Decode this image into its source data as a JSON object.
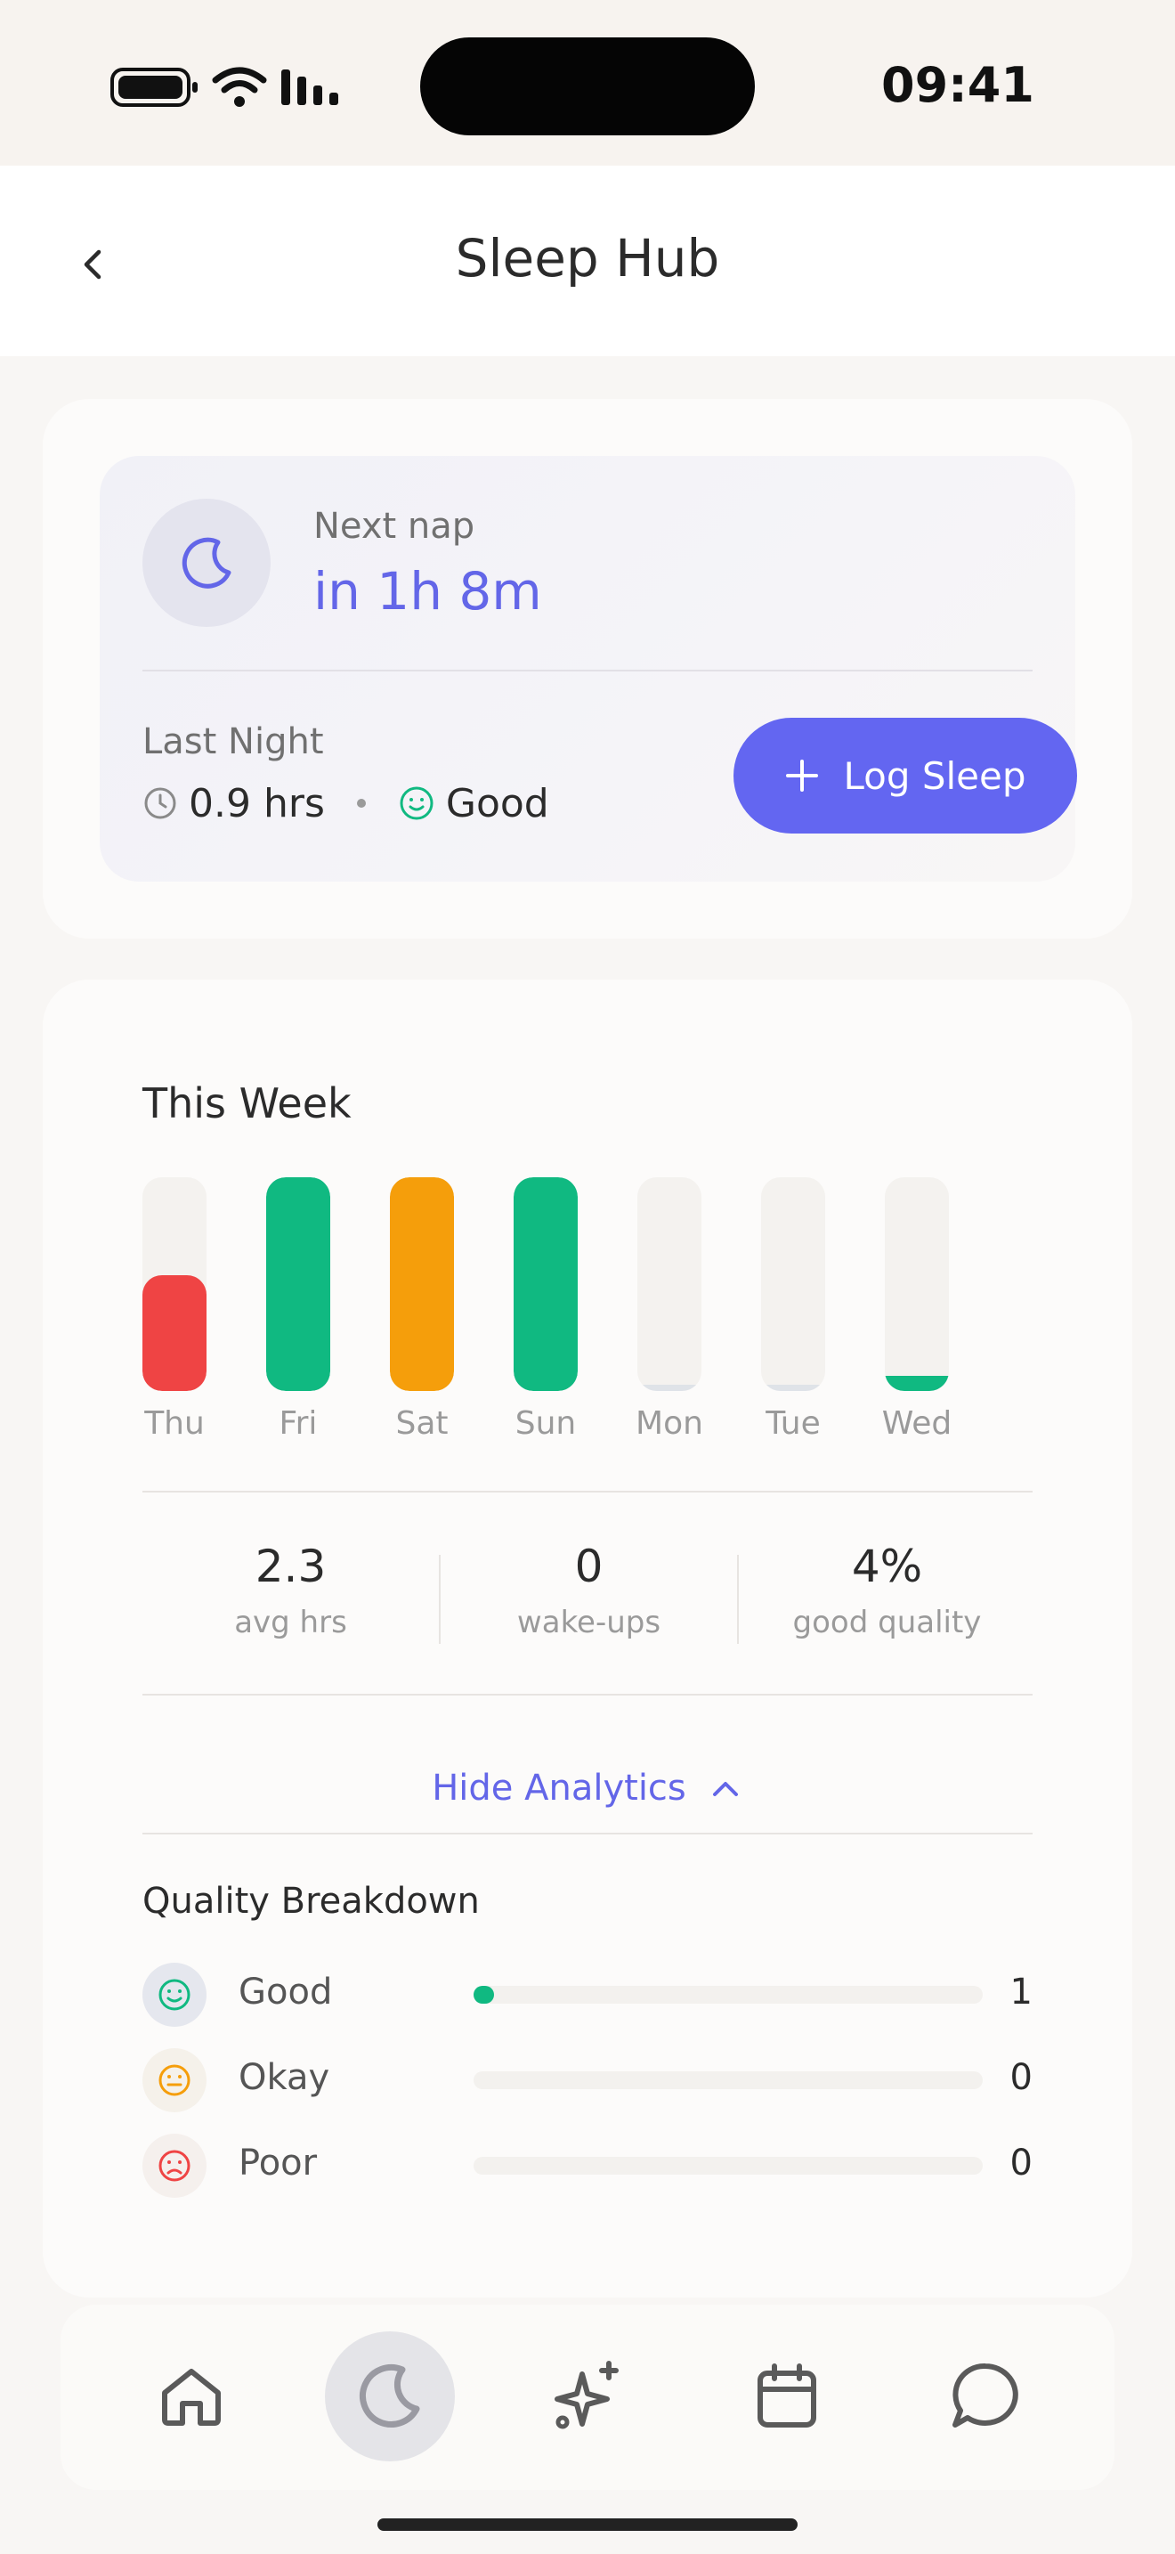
{
  "status_bar": {
    "time": "09:41"
  },
  "header": {
    "title": "Sleep Hub"
  },
  "next_nap": {
    "label": "Next nap",
    "value": "in 1h 8m"
  },
  "last_night": {
    "label": "Last Night",
    "hours": "0.9 hrs",
    "quality": "Good",
    "log_button_label": "Log Sleep"
  },
  "week": {
    "title": "This Week",
    "days": [
      {
        "label": "Thu",
        "fraction": 0.54,
        "color": "#ef4444"
      },
      {
        "label": "Fri",
        "fraction": 1.0,
        "color": "#10b981"
      },
      {
        "label": "Sat",
        "fraction": 1.0,
        "color": "#f59e0b"
      },
      {
        "label": "Sun",
        "fraction": 1.0,
        "color": "#10b981"
      },
      {
        "label": "Mon",
        "fraction": 0.03,
        "color": "#dfe3e8"
      },
      {
        "label": "Tue",
        "fraction": 0.03,
        "color": "#dfe3e8"
      },
      {
        "label": "Wed",
        "fraction": 0.07,
        "color": "#10b981"
      }
    ],
    "stats": [
      {
        "value": "2.3",
        "label": "avg hrs"
      },
      {
        "value": "0",
        "label": "wake-ups"
      },
      {
        "value": "4%",
        "label": "good quality"
      }
    ],
    "toggle_label": "Hide Analytics"
  },
  "quality_breakdown": {
    "title": "Quality Breakdown",
    "rows": [
      {
        "name": "Good",
        "count": "1",
        "fraction": 0.04,
        "color": "#10b981",
        "bg": "#e5e7ee",
        "icon": "smile-icon"
      },
      {
        "name": "Okay",
        "count": "0",
        "fraction": 0,
        "color": "#f59e0b",
        "bg": "#f5f1ea",
        "icon": "neutral-face-icon"
      },
      {
        "name": "Poor",
        "count": "0",
        "fraction": 0,
        "color": "#ef4444",
        "bg": "#f5f0ed",
        "icon": "sad-face-icon"
      }
    ]
  },
  "tab_bar": {
    "tabs": [
      {
        "name": "home",
        "icon": "home-icon",
        "active": false
      },
      {
        "name": "sleep",
        "icon": "moon-icon",
        "active": true
      },
      {
        "name": "ai",
        "icon": "sparkles-icon",
        "active": false
      },
      {
        "name": "calendar",
        "icon": "calendar-icon",
        "active": false
      },
      {
        "name": "chat",
        "icon": "chat-bubble-icon",
        "active": false
      }
    ]
  },
  "colors": {
    "accent": "#6366f1",
    "good": "#10b981",
    "okay": "#f59e0b",
    "poor": "#ef4444"
  }
}
